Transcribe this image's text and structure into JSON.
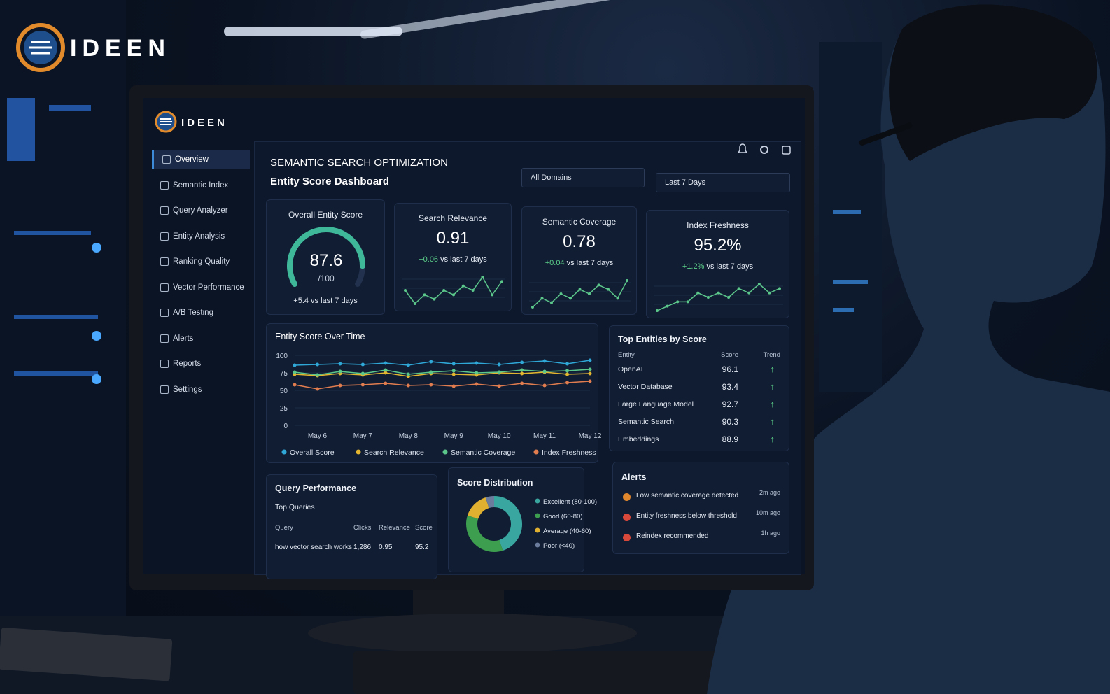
{
  "logo": {
    "text": "IDEEN"
  },
  "screen_logo": {
    "text": "IDEEN"
  },
  "sidebar": {
    "items": [
      "Overview",
      "Semantic Index",
      "Query Analyzer",
      "Entity Analysis",
      "Ranking Quality",
      "Vector Performance",
      "A/B Testing",
      "Alerts",
      "Reports",
      "Settings"
    ]
  },
  "header": {
    "title": "SEMANTIC SEARCH OPTIMIZATION",
    "subtitle": "Entity Score Dashboard",
    "filters": [
      "All Domains",
      "Last 7 Days"
    ]
  },
  "gauge": {
    "title": "Overall Entity Score",
    "value": 87.6,
    "max": 100,
    "max_label": "/100",
    "note": "+5.4 vs last 7 days",
    "color": "#3fb89a"
  },
  "kpis": [
    {
      "title": "Search Relevance",
      "value": "0.91",
      "delta": "+0.06",
      "note": "vs last 7 days",
      "trend": [
        5,
        2,
        4,
        3,
        5,
        4,
        6,
        5,
        8,
        4,
        7
      ]
    },
    {
      "title": "Semantic Coverage",
      "value": "0.78",
      "delta": "+0.04",
      "note": "vs last 7 days",
      "trend": [
        2,
        4,
        3,
        5,
        4,
        6,
        5,
        7,
        6,
        4,
        8
      ]
    },
    {
      "title": "Index Freshness",
      "value": "95.2%",
      "delta": "+1.2%",
      "note": "vs last 7 days",
      "trend": [
        2,
        3,
        4,
        4,
        6,
        5,
        6,
        5,
        7,
        6,
        8,
        6,
        7
      ]
    }
  ],
  "line_chart": {
    "type": "line",
    "title": "Entity Score Over Time",
    "categories": [
      null,
      "May 6",
      null,
      "May 7",
      null,
      "May 8",
      null,
      "May 9",
      null,
      "May 10",
      null,
      "May 11",
      null,
      "May 12"
    ],
    "series": [
      {
        "name": "Overall Score",
        "color": "#2fa8d8",
        "values": [
          86,
          87,
          88,
          87,
          89,
          86,
          91,
          88,
          89,
          87,
          90,
          92,
          88,
          93
        ]
      },
      {
        "name": "Search Relevance",
        "color": "#e4b62f",
        "values": [
          73,
          71,
          74,
          72,
          75,
          70,
          74,
          73,
          72,
          75,
          74,
          76,
          73,
          74
        ]
      },
      {
        "name": "Semantic Coverage",
        "color": "#5cc78a",
        "values": [
          76,
          72,
          77,
          74,
          79,
          73,
          76,
          78,
          75,
          76,
          79,
          77,
          78,
          80
        ]
      },
      {
        "name": "Index Freshness",
        "color": "#e27d4f",
        "values": [
          58,
          52,
          57,
          58,
          60,
          57,
          58,
          56,
          59,
          56,
          60,
          57,
          61,
          63
        ]
      }
    ],
    "ylim": [
      0,
      100
    ],
    "yticks": [
      0,
      25,
      50,
      75,
      100
    ],
    "grid": true
  },
  "top_entities": {
    "title": "Top Entities by Score",
    "columns": [
      "Entity",
      "Score",
      "Trend"
    ],
    "rows": [
      [
        "OpenAI",
        96.1
      ],
      [
        "Vector Database",
        93.4
      ],
      [
        "Large Language Model",
        92.7
      ],
      [
        "Semantic Search",
        90.3
      ],
      [
        "Embeddings",
        88.9
      ]
    ]
  },
  "query_performance": {
    "title": "Query Performance",
    "subtitle": "Top Queries",
    "columns": [
      "Query",
      "Clicks",
      "Relevance",
      "Score"
    ],
    "rows": [
      [
        "how vector search works",
        "1,286",
        0.95,
        95.2
      ]
    ]
  },
  "score_distribution": {
    "type": "pie",
    "title": "Score Distribution",
    "segments": [
      {
        "name": "Excellent (80-100)",
        "value": 45,
        "color": "#3aa6a0"
      },
      {
        "name": "Good (60-80)",
        "value": 35,
        "color": "#3d9e4f"
      },
      {
        "name": "Average (40-60)",
        "value": 15,
        "color": "#e0b030"
      },
      {
        "name": "Poor (<40)",
        "value": 5,
        "color": "#6b7c9c"
      }
    ]
  },
  "alerts": {
    "title": "Alerts",
    "items": [
      {
        "text": "Low semantic coverage detected",
        "time": "2m ago"
      },
      {
        "text": "Entity freshness below threshold",
        "time": "10m ago"
      },
      {
        "text": "Reindex recommended",
        "time": "1h ago"
      }
    ]
  }
}
